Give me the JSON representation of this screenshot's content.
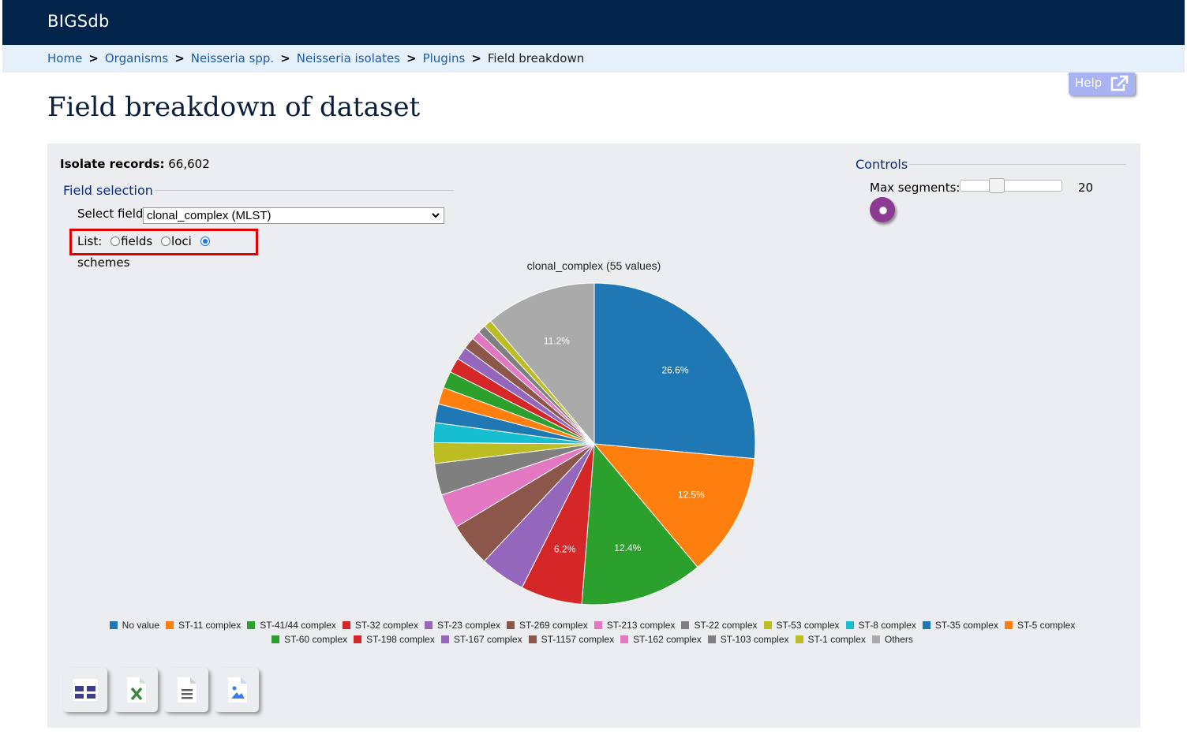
{
  "app": {
    "brand": "BIGSdb"
  },
  "breadcrumb": {
    "items": [
      "Home",
      "Organisms",
      "Neisseria spp.",
      "Neisseria isolates",
      "Plugins"
    ],
    "separator": ">",
    "current": "Field breakdown"
  },
  "help": {
    "label": "Help",
    "icon": "external-link-icon"
  },
  "page": {
    "title": "Field breakdown of dataset"
  },
  "summary": {
    "records_label": "Isolate records:",
    "records_value": "66,602"
  },
  "field_selection": {
    "legend": "Field selection",
    "select_label": "Select field:",
    "select_value": "clonal_complex (MLST)",
    "list_label": "List:",
    "options": [
      "fields",
      "loci",
      "schemes"
    ],
    "selected_option": "schemes"
  },
  "controls": {
    "legend": "Controls",
    "max_segments_label": "Max segments:",
    "max_segments_value": "20",
    "slider_level": 0.33
  },
  "exports": [
    {
      "name": "table-export-button",
      "icon": "table-icon",
      "color": "#3e3d87"
    },
    {
      "name": "excel-export-button",
      "icon": "excel-file-icon",
      "color": "#3c8a3e"
    },
    {
      "name": "text-export-button",
      "icon": "text-file-icon",
      "color": "#5f5f5f"
    },
    {
      "name": "image-export-button",
      "icon": "image-file-icon",
      "color": "#3a7bf2"
    }
  ],
  "chart_data": {
    "type": "pie",
    "title": "clonal_complex (55 values)",
    "categories": [
      "No value",
      "ST-11 complex",
      "ST-41/44 complex",
      "ST-32 complex",
      "ST-23 complex",
      "ST-269 complex",
      "ST-213 complex",
      "ST-22 complex",
      "ST-53 complex",
      "ST-8 complex",
      "ST-35 complex",
      "ST-5 complex",
      "ST-60 complex",
      "ST-198 complex",
      "ST-167 complex",
      "ST-1157 complex",
      "ST-162 complex",
      "ST-103 complex",
      "ST-1 complex",
      "Others"
    ],
    "values": [
      26.6,
      12.5,
      12.4,
      6.2,
      4.6,
      4.4,
      3.5,
      3.2,
      2.1,
      2.0,
      1.9,
      1.7,
      1.7,
      1.5,
      1.3,
      1.2,
      0.9,
      0.8,
      0.8,
      11.2
    ],
    "colors": [
      "#1f77b4",
      "#ff7f0e",
      "#2ca02c",
      "#d62728",
      "#9467bd",
      "#8c564b",
      "#e377c2",
      "#7f7f7f",
      "#bcbd22",
      "#17becf",
      "#1f77b4",
      "#ff7f0e",
      "#2ca02c",
      "#d62728",
      "#9467bd",
      "#8c564b",
      "#e377c2",
      "#7f7f7f",
      "#bcbd22",
      "#aaaaaa"
    ],
    "data_labels": [
      "26.6%",
      "12.5%",
      "12.4%",
      "6.2%",
      "",
      "",
      "",
      "",
      "",
      "",
      "",
      "",
      "",
      "",
      "",
      "",
      "",
      "",
      "",
      "11.2%"
    ],
    "legend_position": "bottom"
  }
}
